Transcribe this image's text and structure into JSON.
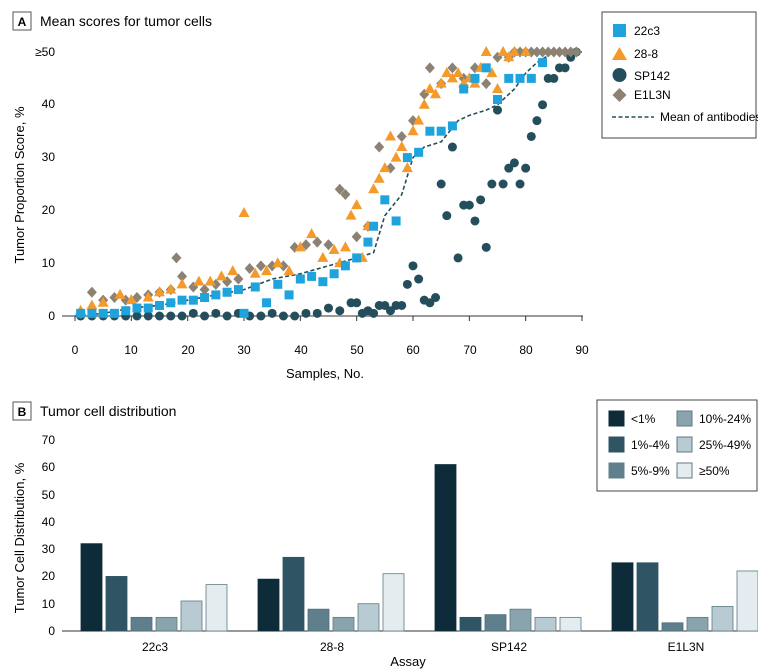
{
  "panel_a": {
    "letter": "A",
    "title": "Mean scores for tumor cells",
    "ylabel": "Tumor Proportion Score, %",
    "xlabel": "Samples, No.",
    "y_ticks": [
      "0",
      "10",
      "20",
      "30",
      "40",
      "≥50"
    ],
    "x_ticks": [
      "0",
      "10",
      "20",
      "30",
      "40",
      "50",
      "60",
      "70",
      "80",
      "90"
    ],
    "legend": [
      {
        "label": "22c3",
        "marker": "square-icon",
        "color": "#1ea3dc"
      },
      {
        "label": "28-8",
        "marker": "triangle-icon",
        "color": "#f49a2b"
      },
      {
        "label": "SP142",
        "marker": "circle-icon",
        "color": "#244e5c"
      },
      {
        "label": "E1L3N",
        "marker": "diamond-icon",
        "color": "#8c8273"
      },
      {
        "label": "Mean of antibodies",
        "marker": "dashed-line-icon",
        "color": "#244e5c"
      }
    ]
  },
  "panel_b": {
    "letter": "B",
    "title": "Tumor cell distribution",
    "ylabel": "Tumor Cell Distribution, %",
    "xlabel": "Assay",
    "y_ticks": [
      "0",
      "10",
      "20",
      "30",
      "40",
      "50",
      "60",
      "70"
    ]
  },
  "chart_data": [
    {
      "type": "scatter",
      "title": "Mean scores for tumor cells",
      "xlabel": "Samples, No.",
      "ylabel": "Tumor Proportion Score, %",
      "xlim": [
        0,
        90
      ],
      "ylim": [
        0,
        50
      ],
      "grid": false,
      "legend_position": "top-right",
      "series": [
        {
          "name": "22c3",
          "marker": "square",
          "color": "#1ea3dc",
          "x": [
            1,
            3,
            5,
            7,
            9,
            11,
            13,
            15,
            17,
            19,
            21,
            23,
            25,
            27,
            29,
            30,
            32,
            34,
            36,
            38,
            40,
            42,
            44,
            46,
            48,
            50,
            52,
            53,
            55,
            57,
            59,
            61,
            63,
            65,
            67,
            69,
            71,
            73,
            75,
            77,
            79,
            81,
            83
          ],
          "y": [
            0.5,
            0.5,
            0.5,
            0.5,
            1,
            1.5,
            1.5,
            2,
            2.5,
            3,
            3,
            3.5,
            4,
            4.5,
            5,
            0.5,
            5.5,
            2.5,
            6,
            4,
            7,
            7.5,
            6.5,
            8,
            9.5,
            11,
            14,
            17,
            22,
            18,
            30,
            31,
            35,
            35,
            36,
            43,
            45,
            47,
            41,
            45,
            45,
            45,
            48
          ]
        },
        {
          "name": "28-8",
          "marker": "triangle",
          "color": "#f49a2b",
          "x": [
            1,
            3,
            5,
            8,
            10,
            13,
            15,
            17,
            19,
            22,
            24,
            26,
            28,
            30,
            32,
            34,
            36,
            38,
            40,
            42,
            44,
            46,
            47,
            48,
            49,
            50,
            51,
            52,
            53,
            54,
            55,
            56,
            57,
            58,
            59,
            60,
            61,
            62,
            63,
            64,
            65,
            66,
            67,
            68,
            69,
            70,
            71,
            72,
            73,
            74,
            75,
            76,
            77,
            78,
            80
          ],
          "y": [
            1,
            2,
            2.5,
            4,
            3,
            3.5,
            4.5,
            5,
            6,
            6.5,
            6.5,
            7.5,
            8.5,
            19.5,
            8,
            8.5,
            10,
            8.5,
            13,
            15.5,
            11,
            12.5,
            10,
            13,
            19,
            21,
            11,
            17,
            24,
            26,
            28,
            34,
            30,
            32,
            28,
            35,
            37,
            40,
            43,
            42,
            44,
            46,
            45,
            46,
            44,
            45,
            44,
            47,
            50,
            46,
            43,
            50,
            49,
            50,
            50
          ]
        },
        {
          "name": "SP142",
          "marker": "circle",
          "color": "#244e5c",
          "x": [
            1,
            3,
            5,
            7,
            9,
            11,
            13,
            15,
            17,
            19,
            21,
            23,
            25,
            27,
            29,
            31,
            33,
            35,
            37,
            39,
            41,
            43,
            45,
            47,
            49,
            50,
            51,
            52,
            53,
            54,
            55,
            56,
            57,
            58,
            59,
            60,
            61,
            62,
            63,
            64,
            65,
            66,
            67,
            68,
            69,
            70,
            71,
            72,
            73,
            74,
            75,
            76,
            77,
            78,
            79,
            80,
            81,
            82,
            83,
            84,
            85,
            86,
            87,
            88,
            89
          ],
          "y": [
            0,
            0,
            0,
            0,
            0,
            0,
            0,
            0,
            0,
            0,
            0.5,
            0,
            0.5,
            0,
            0.5,
            0,
            0,
            0.5,
            0,
            0,
            0.5,
            0.5,
            1.5,
            1,
            2.5,
            2.5,
            0.5,
            1,
            0.5,
            2,
            2,
            1,
            2,
            2,
            6,
            9.5,
            7,
            3,
            2.5,
            3.5,
            25,
            19,
            32,
            11,
            21,
            21,
            18,
            22,
            13,
            25,
            39,
            25,
            28,
            29,
            25,
            28,
            34,
            37,
            40,
            45,
            45,
            47,
            47,
            49,
            50
          ]
        },
        {
          "name": "E1L3N",
          "marker": "diamond",
          "color": "#8c8273",
          "x": [
            1,
            3,
            5,
            7,
            9,
            11,
            13,
            15,
            17,
            18,
            19,
            21,
            23,
            25,
            27,
            29,
            31,
            33,
            35,
            37,
            39,
            41,
            43,
            45,
            47,
            48,
            50,
            52,
            54,
            56,
            58,
            60,
            62,
            63,
            65,
            67,
            69,
            71,
            73,
            75,
            77,
            78,
            79,
            80,
            81,
            82,
            83,
            84,
            85,
            86,
            87,
            88,
            89
          ],
          "y": [
            0.5,
            4.5,
            3,
            3.5,
            3,
            3.5,
            4,
            4.5,
            5,
            11,
            7.5,
            5.5,
            5,
            6,
            6.5,
            7,
            9,
            9.5,
            9.5,
            9.5,
            13,
            13.5,
            14,
            13.5,
            24,
            23,
            15,
            17,
            32,
            28,
            34,
            37,
            42,
            47,
            44,
            47,
            45,
            47,
            44,
            49,
            49,
            50,
            50,
            50,
            50,
            50,
            50,
            50,
            50,
            50,
            50,
            50,
            50
          ]
        },
        {
          "name": "Mean of antibodies",
          "type": "line",
          "style": "dashed",
          "color": "#244e5c",
          "x": [
            0,
            5,
            10,
            15,
            20,
            25,
            30,
            35,
            40,
            45,
            50,
            53,
            55,
            58,
            60,
            62,
            65,
            68,
            70,
            73,
            75,
            78,
            80,
            82,
            85,
            88,
            90
          ],
          "y": [
            0,
            0.5,
            1.5,
            2,
            3,
            4,
            5,
            7,
            8,
            9.5,
            11,
            12,
            19,
            23,
            30,
            32,
            33,
            37,
            38,
            39,
            40,
            43,
            46,
            48,
            50,
            50,
            50
          ]
        }
      ]
    },
    {
      "type": "bar",
      "title": "Tumor cell distribution",
      "xlabel": "Assay",
      "ylabel": "Tumor Cell Distribution, %",
      "ylim": [
        0,
        70
      ],
      "grid": false,
      "legend_position": "top-right",
      "categories": [
        "22c3",
        "28-8",
        "SP142",
        "E1L3N"
      ],
      "series": [
        {
          "name": "<1%",
          "color": "#0d2b38",
          "values": [
            32,
            19,
            61,
            25
          ]
        },
        {
          "name": "1%-4%",
          "color": "#2f5564",
          "values": [
            20,
            27,
            5,
            25
          ]
        },
        {
          "name": "5%-9%",
          "color": "#5e7f8b",
          "values": [
            5,
            8,
            6,
            3
          ]
        },
        {
          "name": "10%-24%",
          "color": "#8aa4ad",
          "values": [
            5,
            5,
            8,
            5
          ]
        },
        {
          "name": "25%-49%",
          "color": "#b8cbd2",
          "values": [
            11,
            10,
            5,
            9
          ]
        },
        {
          "name": "≥50%",
          "color": "#e4ecef",
          "values": [
            17,
            21,
            5,
            22
          ]
        }
      ]
    }
  ]
}
